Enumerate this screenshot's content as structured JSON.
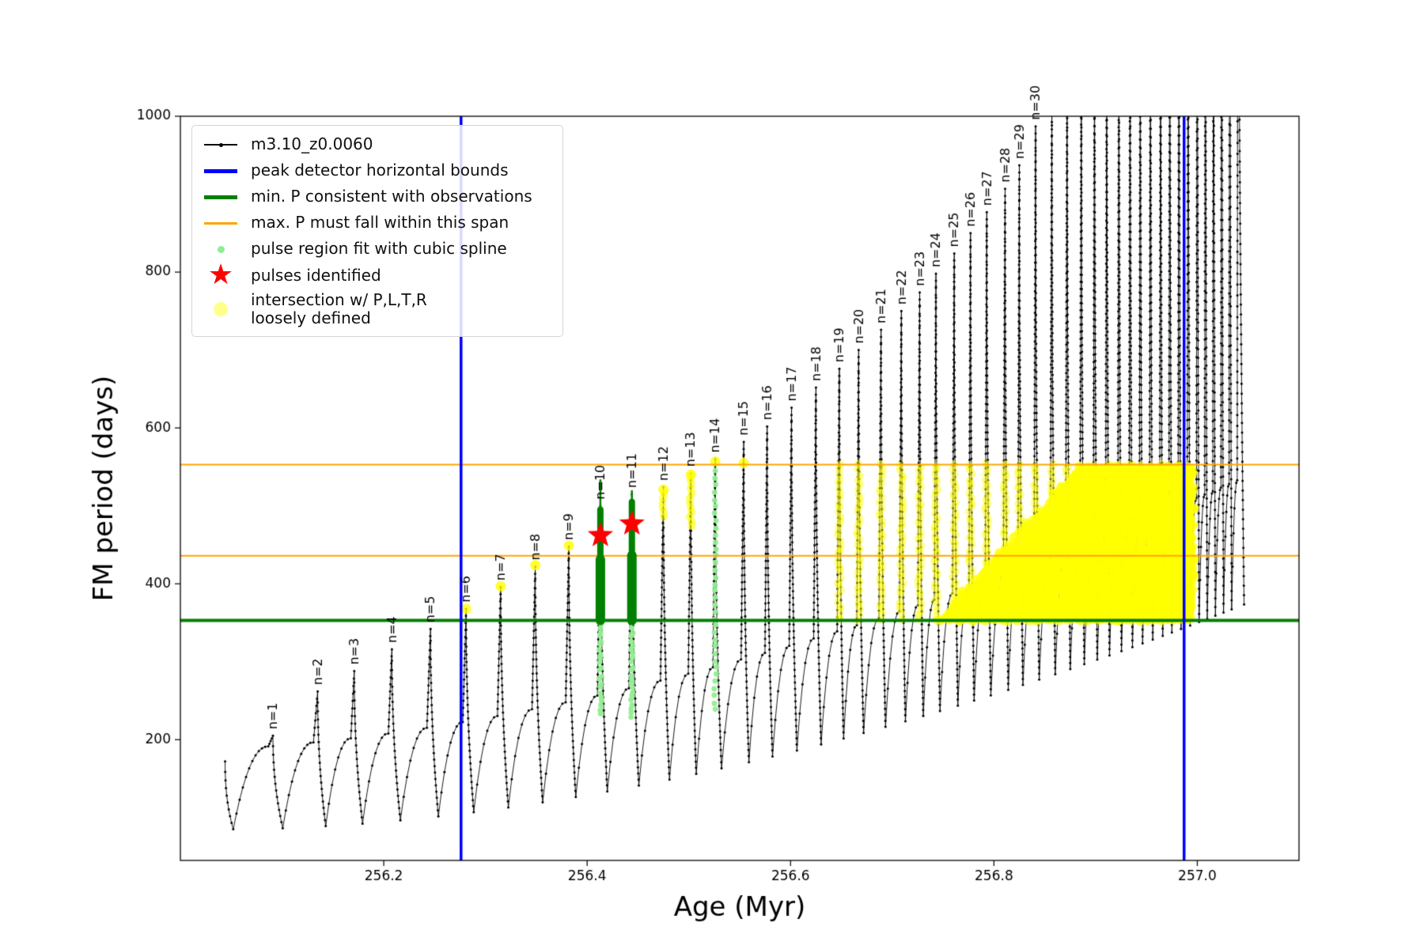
{
  "legend": {
    "items": [
      {
        "label": "m3.10_z0.0060",
        "type": "line-dot",
        "color": "#000000",
        "lw": 2
      },
      {
        "label": "peak detector horizontal bounds",
        "type": "line",
        "color": "#0000ff",
        "lw": 5
      },
      {
        "label": "min. P consistent with observations",
        "type": "line",
        "color": "#008000",
        "lw": 5
      },
      {
        "label": "max. P must fall within this span",
        "type": "line",
        "color": "#ffa500",
        "lw": 3
      },
      {
        "label": "pulse region fit with cubic spline",
        "type": "dot",
        "color": "#90ee90",
        "size": 9,
        "opacity": 1
      },
      {
        "label": "pulses identified",
        "type": "star",
        "color": "#ff0000",
        "size": 36,
        "icon": "★"
      },
      {
        "label": "intersection w/ P,L,T,R\nloosely defined",
        "type": "dot",
        "color": "#ffff00",
        "size": 18,
        "opacity": 0.45
      }
    ]
  },
  "chart_data": {
    "type": "line+scatter",
    "title": "",
    "xlabel": "Age (Myr)",
    "ylabel": "FM period (days)",
    "xlim": [
      256.0,
      257.1
    ],
    "ylim": [
      45,
      1000
    ],
    "xticks": [
      256.2,
      256.4,
      256.6,
      256.8,
      257.0
    ],
    "xtick_labels": [
      "256.2",
      "256.4",
      "256.6",
      "256.8",
      "257.0"
    ],
    "yticks": [
      200,
      400,
      600,
      800,
      1000
    ],
    "ytick_labels": [
      "200",
      "400",
      "600",
      "800",
      "1000"
    ],
    "grid": false,
    "legend_position": "upper-left",
    "series_label": "m3.10_z0.0060",
    "series_color": "#000000",
    "lead_in": {
      "x0": 256.044,
      "y0": 172
    },
    "baseline_model": {
      "min_start": 85,
      "min_amp": 265,
      "x_ref": 256.05,
      "x_span": 0.95,
      "exp": 1.8,
      "shoulder_offset": 100,
      "shoulder_slope": 60
    },
    "pulses": [
      {
        "label": "n=1",
        "x": 256.091,
        "peak": 205
      },
      {
        "label": "n=2",
        "x": 256.135,
        "peak": 262
      },
      {
        "label": "n=3",
        "x": 256.171,
        "peak": 288
      },
      {
        "label": "n=4",
        "x": 256.208,
        "peak": 316
      },
      {
        "label": "n=5",
        "x": 256.246,
        "peak": 342
      },
      {
        "label": "n=6",
        "x": 256.281,
        "peak": 368
      },
      {
        "label": "n=7",
        "x": 256.315,
        "peak": 396
      },
      {
        "label": "n=8",
        "x": 256.349,
        "peak": 422
      },
      {
        "label": "n=9",
        "x": 256.382,
        "peak": 448
      },
      {
        "label": "n=10",
        "x": 256.413,
        "peak": 500
      },
      {
        "label": "n=11",
        "x": 256.444,
        "peak": 515
      },
      {
        "label": "n=12",
        "x": 256.475,
        "peak": 524
      },
      {
        "label": "n=13",
        "x": 256.502,
        "peak": 542
      },
      {
        "label": "n=14",
        "x": 256.526,
        "peak": 560
      },
      {
        "label": "n=15",
        "x": 256.554,
        "peak": 582
      },
      {
        "label": "n=16",
        "x": 256.577,
        "peak": 602
      },
      {
        "label": "n=17",
        "x": 256.601,
        "peak": 626
      },
      {
        "label": "n=18",
        "x": 256.625,
        "peak": 652
      },
      {
        "label": "n=19",
        "x": 256.648,
        "peak": 676
      },
      {
        "label": "n=20",
        "x": 256.667,
        "peak": 700
      },
      {
        "label": "n=21",
        "x": 256.689,
        "peak": 726
      },
      {
        "label": "n=22",
        "x": 256.709,
        "peak": 750
      },
      {
        "label": "n=23",
        "x": 256.727,
        "peak": 774
      },
      {
        "label": "n=24",
        "x": 256.743,
        "peak": 798
      },
      {
        "label": "n=25",
        "x": 256.761,
        "peak": 824
      },
      {
        "label": "n=26",
        "x": 256.777,
        "peak": 850
      },
      {
        "label": "n=27",
        "x": 256.793,
        "peak": 877
      },
      {
        "label": "n=28",
        "x": 256.811,
        "peak": 907
      },
      {
        "label": "n=29",
        "x": 256.825,
        "peak": 937
      },
      {
        "label": "n=30",
        "x": 256.841,
        "peak": 987
      }
    ],
    "extra_pulses": [
      {
        "x": 256.857,
        "peak": 1020
      },
      {
        "x": 256.872,
        "peak": 1055
      },
      {
        "x": 256.886,
        "peak": 1090
      },
      {
        "x": 256.899,
        "peak": 1125
      },
      {
        "x": 256.911,
        "peak": 1160
      },
      {
        "x": 256.923,
        "peak": 1195
      },
      {
        "x": 256.934,
        "peak": 1230
      },
      {
        "x": 256.944,
        "peak": 1265
      },
      {
        "x": 256.954,
        "peak": 1300
      },
      {
        "x": 256.964,
        "peak": 1335
      },
      {
        "x": 256.973,
        "peak": 1370
      },
      {
        "x": 256.982,
        "peak": 1405
      },
      {
        "x": 256.991,
        "peak": 1440
      },
      {
        "x": 257.0,
        "peak": 1475
      },
      {
        "x": 257.008,
        "peak": 1510
      },
      {
        "x": 257.016,
        "peak": 1545
      },
      {
        "x": 257.024,
        "peak": 1580
      },
      {
        "x": 257.032,
        "peak": 1615
      },
      {
        "x": 257.04,
        "peak": 1650
      }
    ],
    "peak_detector_bounds": {
      "color": "#0000ff",
      "x_values": [
        256.276,
        256.987
      ]
    },
    "min_p_line": {
      "color": "#008000",
      "y": 353
    },
    "max_p_span": {
      "color": "#ffa500",
      "y_values": [
        436,
        553
      ]
    },
    "pulses_identified": {
      "color": "#ff0000",
      "points": [
        [
          256.413,
          462
        ],
        [
          256.444,
          477
        ]
      ]
    },
    "spline_regions": {
      "color": "#90ee90",
      "columns": [
        {
          "x": 256.413,
          "y0": 233,
          "y1": 351,
          "step": 5.5
        },
        {
          "x": 256.444,
          "y0": 228,
          "y1": 351,
          "step": 5.5
        },
        {
          "x": 256.526,
          "y0": 238,
          "y1": 552,
          "step": 9
        }
      ]
    },
    "pulse_fit_bars": {
      "color": "#008000",
      "bars": [
        {
          "x": 256.413,
          "y0": 353,
          "y1": 495,
          "tip": 533
        },
        {
          "x": 256.444,
          "y0": 353,
          "y1": 505,
          "tip": 519
        }
      ]
    },
    "intersection": {
      "color": "#ffff00",
      "peak_dots": [
        [
          256.281,
          368
        ],
        [
          256.315,
          397
        ],
        [
          256.349,
          424
        ],
        [
          256.382,
          449
        ],
        [
          256.475,
          521
        ],
        [
          256.502,
          540
        ],
        [
          256.526,
          557
        ],
        [
          256.554,
          555
        ]
      ],
      "streaks": [
        {
          "x": 256.475,
          "y0": 486,
          "y1": 521
        },
        {
          "x": 256.502,
          "y0": 474,
          "y1": 540
        }
      ],
      "cloud": {
        "x0": 256.64,
        "x1": 256.995,
        "y_bottom": 354,
        "y_top": 552,
        "solid_x0": 256.745,
        "solid_slope": 1400
      }
    }
  }
}
